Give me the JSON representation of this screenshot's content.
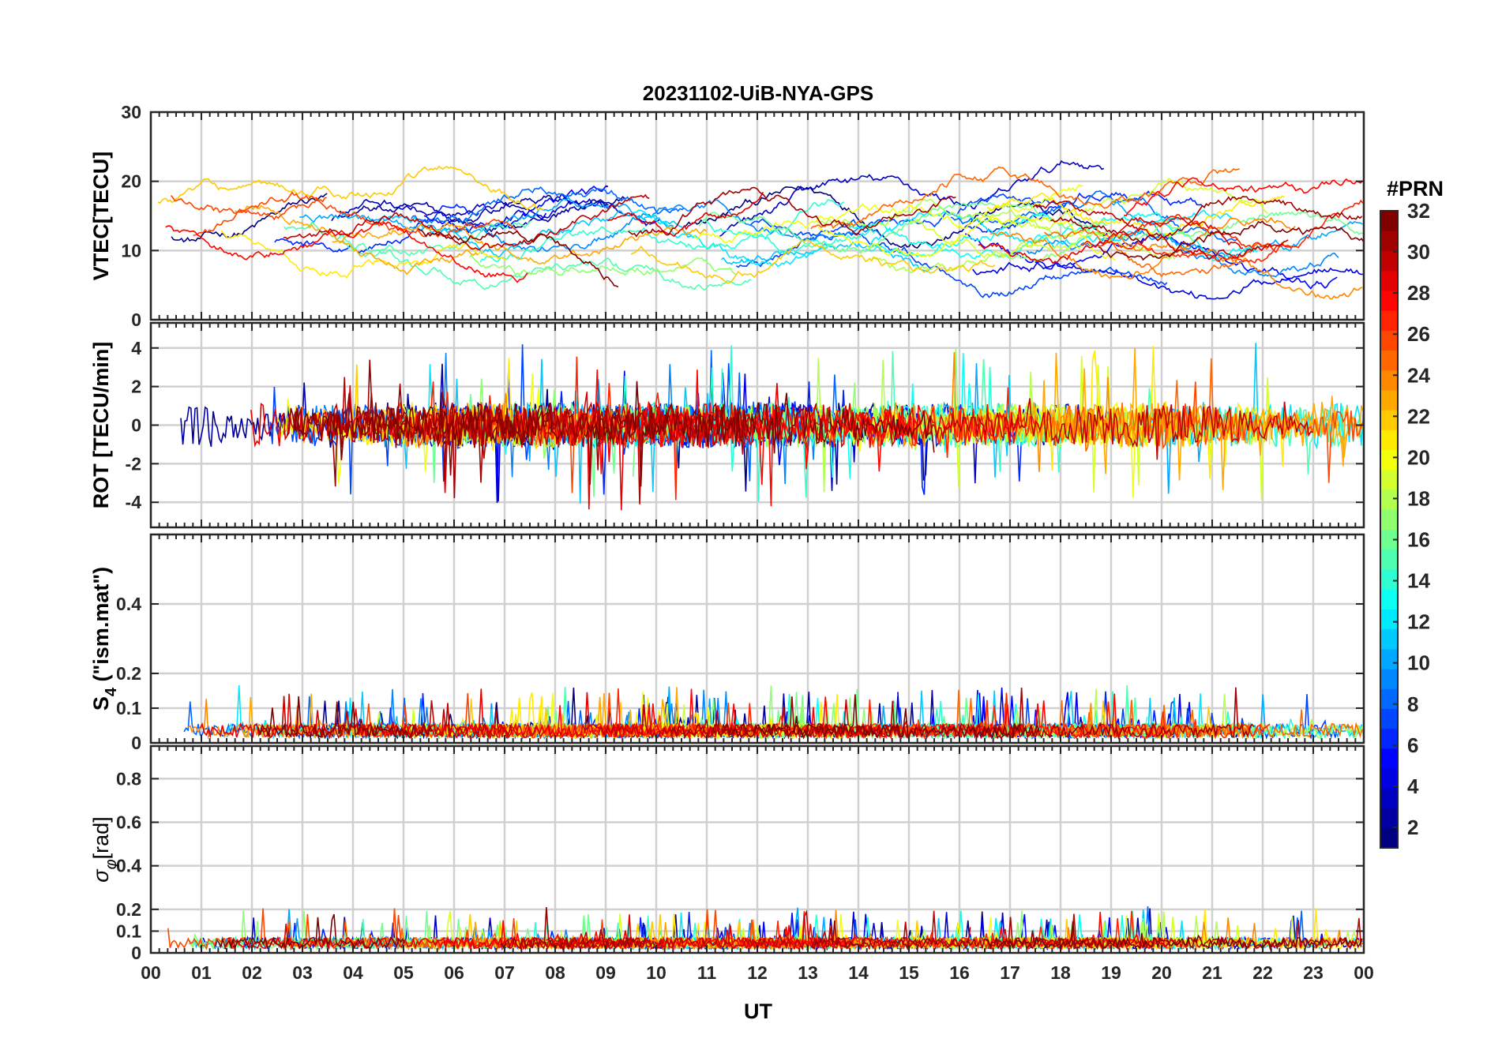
{
  "chart_data": {
    "type": "line",
    "title": "20231102-UiB-NYA-GPS",
    "xlabel": "UT",
    "x_tick_labels": [
      "00",
      "01",
      "02",
      "03",
      "04",
      "05",
      "06",
      "07",
      "08",
      "09",
      "10",
      "11",
      "12",
      "13",
      "14",
      "15",
      "16",
      "17",
      "18",
      "19",
      "20",
      "21",
      "22",
      "23",
      "00"
    ],
    "xlim_hours": [
      0,
      24
    ],
    "grid": true,
    "colorbar": {
      "title": "#PRN",
      "range": [
        1,
        32
      ],
      "tick_labels": [
        "2",
        "4",
        "6",
        "8",
        "10",
        "12",
        "14",
        "16",
        "18",
        "20",
        "22",
        "24",
        "26",
        "28",
        "30",
        "32"
      ],
      "colormap": "jet",
      "placement": "right"
    },
    "panels": [
      {
        "id": "vtec",
        "ylabel": "VTEC[TECU]",
        "ylim": [
          0,
          30
        ],
        "y_ticks": [
          0,
          10,
          20,
          30
        ],
        "y_tick_labels": [
          "0",
          "10",
          "20",
          "30"
        ],
        "baseline": 11,
        "amplitude": 4,
        "description_values": "VTEC per PRN ranging roughly 5-26 TECU"
      },
      {
        "id": "rot",
        "ylabel": "ROT [TECU/min]",
        "ylim": [
          -5.3,
          5.3
        ],
        "y_ticks": [
          -4,
          -2,
          0,
          2,
          4
        ],
        "y_tick_labels": [
          "-4",
          "-2",
          "0",
          "2",
          "4"
        ],
        "baseline": 0,
        "amplitude": 1.0
      },
      {
        "id": "s4",
        "ylabel_main": "S",
        "ylabel_sub": "4",
        "ylabel_rest": " (\"ism.mat\")",
        "ylim": [
          0,
          0.6
        ],
        "y_ticks": [
          0,
          0.1,
          0.2,
          0.4
        ],
        "y_tick_labels": [
          "0",
          "0.1",
          "0.2",
          "0.4"
        ],
        "baseline": 0.03,
        "amplitude": 0.04
      },
      {
        "id": "sigma",
        "ylabel_main": "σ",
        "ylabel_sub": "φ",
        "ylabel_rest": "[rad]",
        "ylim": [
          0,
          0.95
        ],
        "y_ticks": [
          0,
          0.1,
          0.2,
          0.4,
          0.6,
          0.8
        ],
        "y_tick_labels": [
          "0",
          "0.1",
          "0.2",
          "0.4",
          "0.6",
          "0.8"
        ],
        "baseline": 0.04,
        "amplitude": 0.05
      }
    ]
  }
}
